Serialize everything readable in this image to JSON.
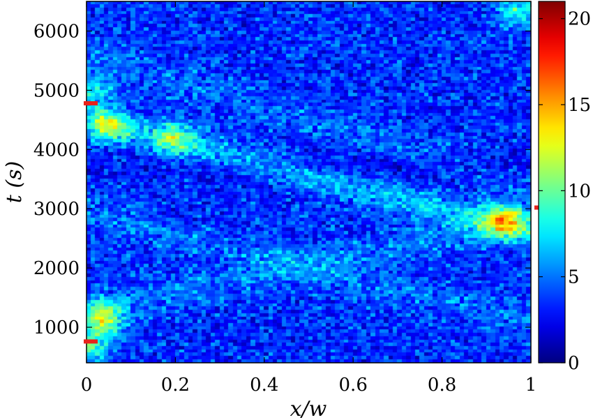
{
  "chart_data": {
    "type": "heatmap",
    "xlabel": "x/w",
    "ylabel": "t (s)",
    "xlim": [
      0,
      1
    ],
    "ylim": [
      400,
      6500
    ],
    "x_ticks": [
      0,
      0.2,
      0.4,
      0.6,
      0.8,
      1
    ],
    "x_tick_labels": [
      "0",
      "0.2",
      "0.4",
      "0.6",
      "0.8",
      "1"
    ],
    "y_ticks": [
      1000,
      2000,
      3000,
      4000,
      5000,
      6000
    ],
    "y_tick_labels": [
      "1000",
      "2000",
      "3000",
      "4000",
      "5000",
      "6000"
    ],
    "colorbar": {
      "min": 0,
      "max": 21,
      "colormap": "jet",
      "ticks": [
        0,
        5,
        10,
        15,
        20
      ],
      "tick_labels": [
        "0",
        "5",
        "10",
        "15",
        "20"
      ]
    },
    "grid_size": {
      "nx": 100,
      "ny": 110
    },
    "hotspots": [
      {
        "x": 0.04,
        "t": 1150,
        "value": 12
      },
      {
        "x": 0.01,
        "t": 700,
        "value": 10
      },
      {
        "x": 0.05,
        "t": 4400,
        "value": 10
      },
      {
        "x": 0.2,
        "t": 4200,
        "value": 9
      },
      {
        "x": 0.94,
        "t": 2800,
        "value": 12
      },
      {
        "x": 0.97,
        "t": 6350,
        "value": 9
      },
      {
        "x": 0.02,
        "t": 5000,
        "value": 8
      }
    ],
    "markers": [
      {
        "side": "left",
        "t": 4780,
        "color": "#e8221a"
      },
      {
        "side": "left",
        "t": 760,
        "color": "#e8221a"
      },
      {
        "side": "right",
        "t": 3020,
        "color": "#e8221a"
      }
    ]
  }
}
